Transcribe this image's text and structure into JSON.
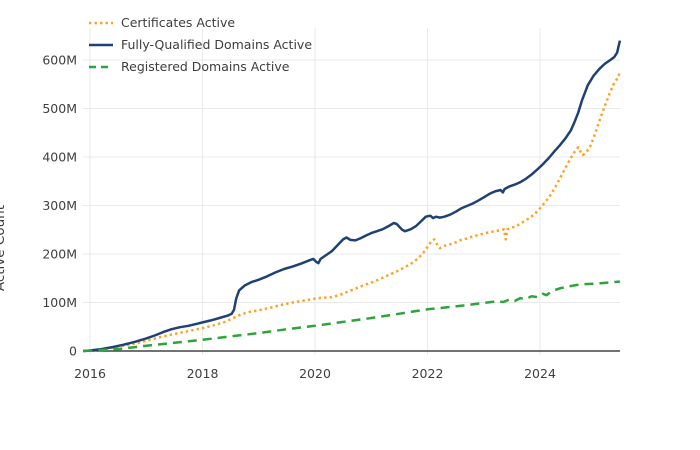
{
  "chart": {
    "y_axis_title": "Active Count",
    "background_color": "#ffffff",
    "grid_color": "#e9e9e9",
    "axis_line_color": "#444444",
    "text_color": "#3f3f3f",
    "legend_position": "top-left"
  },
  "chart_data": {
    "type": "line",
    "title": "",
    "xlabel": "",
    "ylabel": "Active Count",
    "xlim": [
      2015.85,
      2025.5
    ],
    "ylim": [
      0,
      660
    ],
    "grid": true,
    "x_ticks": [
      2016,
      2018,
      2020,
      2022,
      2024
    ],
    "y_ticks": [
      {
        "value": 0,
        "label": "0"
      },
      {
        "value": 100,
        "label": "100M"
      },
      {
        "value": 200,
        "label": "200M"
      },
      {
        "value": 300,
        "label": "300M"
      },
      {
        "value": 400,
        "label": "400M"
      },
      {
        "value": 500,
        "label": "500M"
      },
      {
        "value": 600,
        "label": "600M"
      }
    ],
    "unit": "millions",
    "series": [
      {
        "name": "Certificates Active",
        "color": "#fca326",
        "style": "dotted",
        "points": [
          [
            2015.88,
            0
          ],
          [
            2016.1,
            2
          ],
          [
            2016.3,
            5
          ],
          [
            2016.5,
            9
          ],
          [
            2016.7,
            13
          ],
          [
            2016.9,
            18
          ],
          [
            2017.1,
            24
          ],
          [
            2017.3,
            30
          ],
          [
            2017.5,
            35
          ],
          [
            2017.7,
            40
          ],
          [
            2017.9,
            45
          ],
          [
            2018.0,
            47
          ],
          [
            2018.2,
            53
          ],
          [
            2018.4,
            60
          ],
          [
            2018.55,
            68
          ],
          [
            2018.7,
            76
          ],
          [
            2018.85,
            81
          ],
          [
            2019.0,
            84
          ],
          [
            2019.2,
            89
          ],
          [
            2019.4,
            95
          ],
          [
            2019.6,
            100
          ],
          [
            2019.8,
            104
          ],
          [
            2020.0,
            108
          ],
          [
            2020.15,
            110
          ],
          [
            2020.3,
            111
          ],
          [
            2020.45,
            116
          ],
          [
            2020.6,
            123
          ],
          [
            2020.75,
            130
          ],
          [
            2020.9,
            137
          ],
          [
            2021.0,
            141
          ],
          [
            2021.15,
            148
          ],
          [
            2021.3,
            156
          ],
          [
            2021.45,
            164
          ],
          [
            2021.6,
            173
          ],
          [
            2021.75,
            183
          ],
          [
            2021.85,
            193
          ],
          [
            2021.95,
            206
          ],
          [
            2022.02,
            218
          ],
          [
            2022.08,
            228
          ],
          [
            2022.12,
            230
          ],
          [
            2022.18,
            218
          ],
          [
            2022.22,
            212
          ],
          [
            2022.3,
            217
          ],
          [
            2022.4,
            220
          ],
          [
            2022.5,
            224
          ],
          [
            2022.6,
            229
          ],
          [
            2022.7,
            232
          ],
          [
            2022.8,
            236
          ],
          [
            2022.9,
            239
          ],
          [
            2023.0,
            242
          ],
          [
            2023.1,
            245
          ],
          [
            2023.2,
            247
          ],
          [
            2023.3,
            249
          ],
          [
            2023.36,
            251
          ],
          [
            2023.39,
            230
          ],
          [
            2023.42,
            251
          ],
          [
            2023.5,
            254
          ],
          [
            2023.6,
            259
          ],
          [
            2023.7,
            266
          ],
          [
            2023.8,
            273
          ],
          [
            2023.9,
            282
          ],
          [
            2024.0,
            294
          ],
          [
            2024.1,
            308
          ],
          [
            2024.2,
            324
          ],
          [
            2024.3,
            344
          ],
          [
            2024.4,
            366
          ],
          [
            2024.5,
            388
          ],
          [
            2024.58,
            404
          ],
          [
            2024.64,
            415
          ],
          [
            2024.68,
            420
          ],
          [
            2024.72,
            411
          ],
          [
            2024.76,
            404
          ],
          [
            2024.82,
            409
          ],
          [
            2024.9,
            424
          ],
          [
            2025.0,
            455
          ],
          [
            2025.08,
            482
          ],
          [
            2025.16,
            508
          ],
          [
            2025.24,
            532
          ],
          [
            2025.3,
            548
          ],
          [
            2025.35,
            558
          ],
          [
            2025.39,
            564
          ],
          [
            2025.42,
            578
          ]
        ]
      },
      {
        "name": "Fully-Qualified Domains Active",
        "color": "#1f4173",
        "style": "solid",
        "points": [
          [
            2015.88,
            0
          ],
          [
            2016.0,
            1
          ],
          [
            2016.2,
            4
          ],
          [
            2016.4,
            8
          ],
          [
            2016.6,
            13
          ],
          [
            2016.8,
            19
          ],
          [
            2017.0,
            26
          ],
          [
            2017.15,
            32
          ],
          [
            2017.3,
            39
          ],
          [
            2017.45,
            45
          ],
          [
            2017.6,
            49
          ],
          [
            2017.75,
            52
          ],
          [
            2017.9,
            56
          ],
          [
            2018.0,
            59
          ],
          [
            2018.15,
            63
          ],
          [
            2018.3,
            68
          ],
          [
            2018.45,
            73
          ],
          [
            2018.52,
            77
          ],
          [
            2018.56,
            85
          ],
          [
            2018.6,
            108
          ],
          [
            2018.65,
            125
          ],
          [
            2018.75,
            135
          ],
          [
            2018.87,
            142
          ],
          [
            2019.0,
            147
          ],
          [
            2019.15,
            154
          ],
          [
            2019.3,
            162
          ],
          [
            2019.45,
            169
          ],
          [
            2019.6,
            174
          ],
          [
            2019.75,
            180
          ],
          [
            2019.9,
            187
          ],
          [
            2019.97,
            190
          ],
          [
            2020.02,
            184
          ],
          [
            2020.06,
            181
          ],
          [
            2020.1,
            190
          ],
          [
            2020.2,
            198
          ],
          [
            2020.3,
            206
          ],
          [
            2020.4,
            218
          ],
          [
            2020.5,
            230
          ],
          [
            2020.56,
            234
          ],
          [
            2020.63,
            229
          ],
          [
            2020.72,
            228
          ],
          [
            2020.82,
            233
          ],
          [
            2020.92,
            239
          ],
          [
            2021.0,
            243
          ],
          [
            2021.1,
            247
          ],
          [
            2021.2,
            251
          ],
          [
            2021.3,
            257
          ],
          [
            2021.4,
            264
          ],
          [
            2021.45,
            262
          ],
          [
            2021.55,
            250
          ],
          [
            2021.6,
            247
          ],
          [
            2021.7,
            251
          ],
          [
            2021.8,
            258
          ],
          [
            2021.9,
            269
          ],
          [
            2021.97,
            277
          ],
          [
            2022.05,
            279
          ],
          [
            2022.1,
            274
          ],
          [
            2022.15,
            277
          ],
          [
            2022.22,
            275
          ],
          [
            2022.3,
            277
          ],
          [
            2022.4,
            281
          ],
          [
            2022.5,
            287
          ],
          [
            2022.6,
            294
          ],
          [
            2022.7,
            299
          ],
          [
            2022.8,
            304
          ],
          [
            2022.9,
            310
          ],
          [
            2023.0,
            317
          ],
          [
            2023.1,
            324
          ],
          [
            2023.2,
            329
          ],
          [
            2023.3,
            332
          ],
          [
            2023.34,
            327
          ],
          [
            2023.37,
            334
          ],
          [
            2023.45,
            339
          ],
          [
            2023.55,
            343
          ],
          [
            2023.65,
            348
          ],
          [
            2023.75,
            355
          ],
          [
            2023.85,
            364
          ],
          [
            2023.95,
            374
          ],
          [
            2024.05,
            385
          ],
          [
            2024.15,
            397
          ],
          [
            2024.25,
            411
          ],
          [
            2024.35,
            424
          ],
          [
            2024.45,
            438
          ],
          [
            2024.55,
            455
          ],
          [
            2024.62,
            474
          ],
          [
            2024.68,
            492
          ],
          [
            2024.75,
            518
          ],
          [
            2024.85,
            548
          ],
          [
            2024.95,
            567
          ],
          [
            2025.05,
            581
          ],
          [
            2025.15,
            592
          ],
          [
            2025.25,
            600
          ],
          [
            2025.32,
            606
          ],
          [
            2025.37,
            615
          ],
          [
            2025.42,
            640
          ]
        ]
      },
      {
        "name": "Registered Domains Active",
        "color": "#2ea43a",
        "style": "dashed",
        "points": [
          [
            2015.88,
            0
          ],
          [
            2016.2,
            2
          ],
          [
            2016.5,
            4
          ],
          [
            2016.8,
            8
          ],
          [
            2017.0,
            11
          ],
          [
            2017.5,
            17
          ],
          [
            2018.0,
            23
          ],
          [
            2018.5,
            30
          ],
          [
            2019.0,
            37
          ],
          [
            2019.5,
            45
          ],
          [
            2020.0,
            52
          ],
          [
            2020.5,
            60
          ],
          [
            2021.0,
            68
          ],
          [
            2021.5,
            77
          ],
          [
            2022.0,
            86
          ],
          [
            2022.5,
            92
          ],
          [
            2023.0,
            99
          ],
          [
            2023.2,
            102
          ],
          [
            2023.35,
            101
          ],
          [
            2023.45,
            106
          ],
          [
            2023.55,
            103
          ],
          [
            2023.65,
            109
          ],
          [
            2023.75,
            107
          ],
          [
            2023.85,
            113
          ],
          [
            2023.95,
            111
          ],
          [
            2024.05,
            118
          ],
          [
            2024.12,
            115
          ],
          [
            2024.2,
            123
          ],
          [
            2024.35,
            129
          ],
          [
            2024.5,
            133
          ],
          [
            2024.65,
            136
          ],
          [
            2024.8,
            138
          ],
          [
            2025.0,
            139
          ],
          [
            2025.2,
            141
          ],
          [
            2025.42,
            143
          ]
        ]
      }
    ]
  }
}
